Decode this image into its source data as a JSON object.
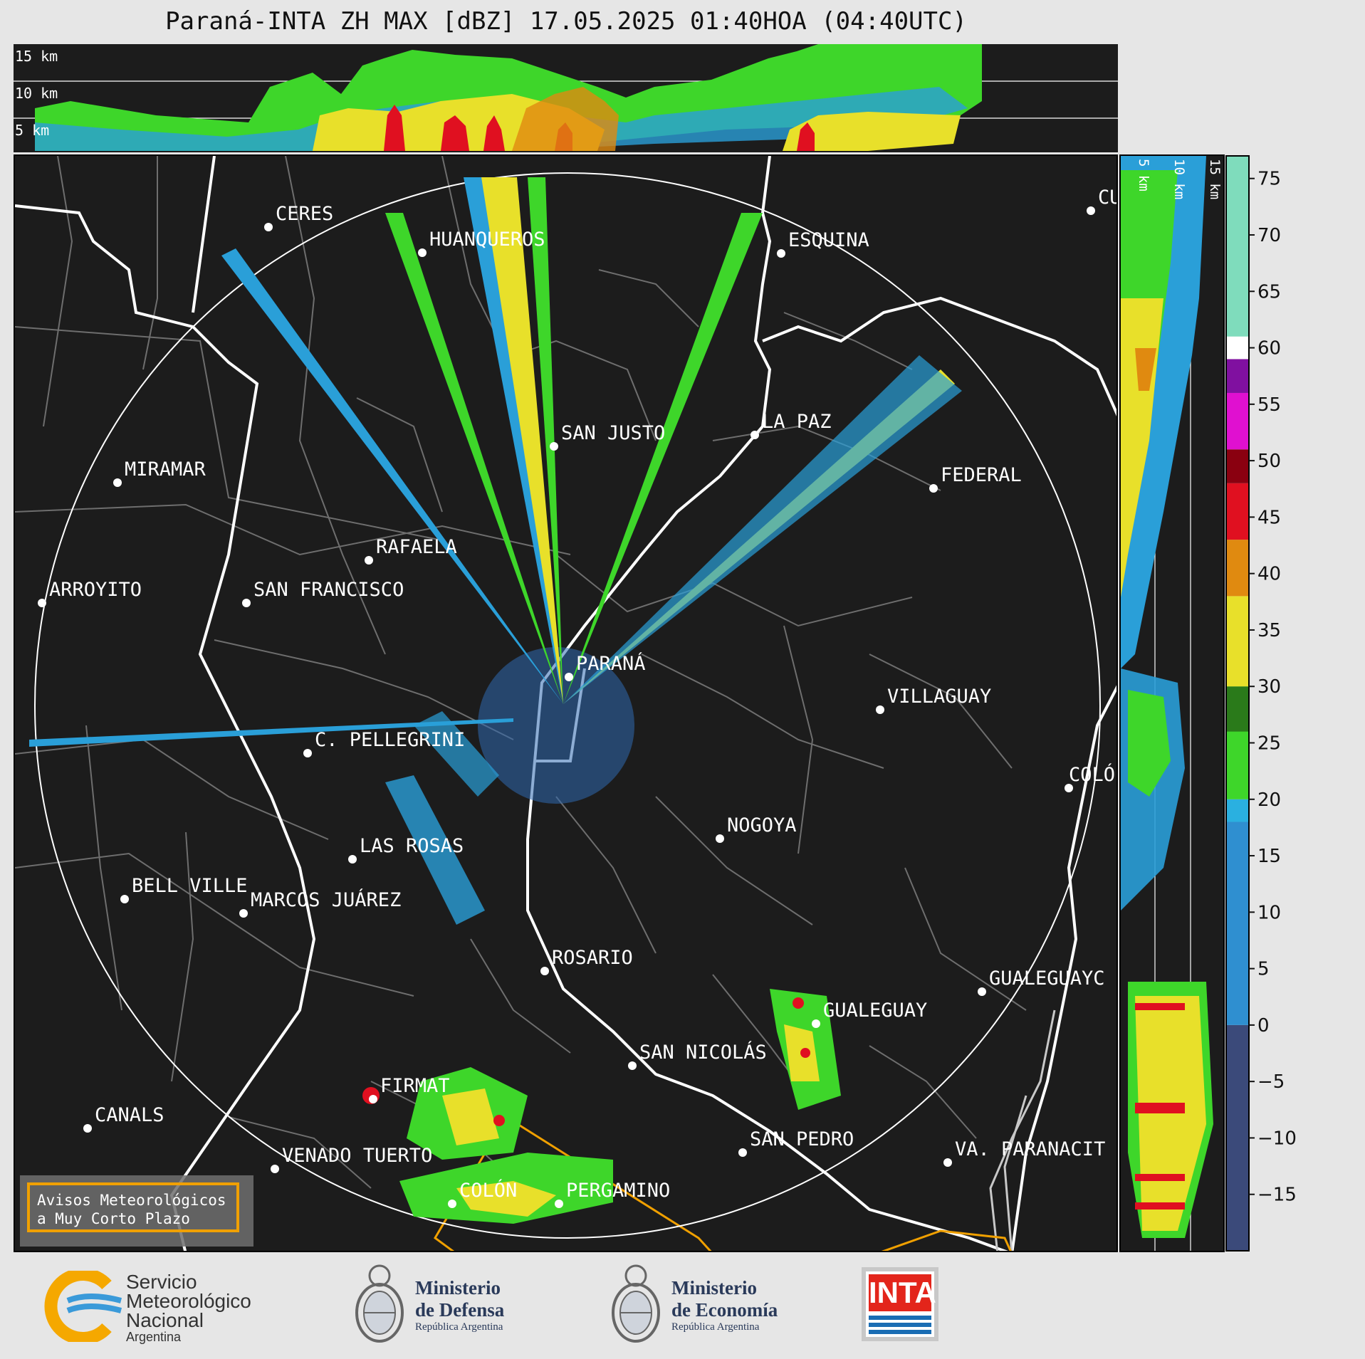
{
  "title": "Paraná-INTA ZH MAX [dBZ] 17.05.2025 01:40HOA (04:40UTC)",
  "top_panel": {
    "height_labels": [
      "15 km",
      "10 km",
      "5 km"
    ]
  },
  "side_panel": {
    "height_labels": [
      "5 km",
      "10 km",
      "15 km"
    ]
  },
  "colorbar": {
    "ticks": [
      "75",
      "70",
      "65",
      "60",
      "55",
      "50",
      "45",
      "40",
      "35",
      "30",
      "25",
      "20",
      "15",
      "10",
      "5",
      "0",
      "−5",
      "−10",
      "−15"
    ],
    "range_dbz": [
      -20,
      77
    ],
    "colors": {
      "low": "#3b4a7a",
      "blue": "#2f8fd0",
      "cyan": "#2ab0e0",
      "green": "#3ed62a",
      "darkgreen": "#2a7a1a",
      "yellow": "#e8e02a",
      "orange": "#e08a10",
      "red": "#e01020",
      "darkred": "#8a0010",
      "magenta": "#e010d0",
      "purple": "#8010a0",
      "white": "#ffffff",
      "mint": "#7fdcbc"
    }
  },
  "cities": [
    "CERES",
    "HUANQUEROS",
    "ESQUINA",
    "CU",
    "SAN JUSTO",
    "LA PAZ",
    "MIRAMAR",
    "FEDERAL",
    "RAFAELA",
    "ARROYITO",
    "SAN FRANCISCO",
    "PARANÁ",
    "VILLAGUAY",
    "C. PELLEGRINI",
    "COLÓ",
    "NOGOYA",
    "LAS ROSAS",
    "BELL VILLE",
    "MARCOS JUÁREZ",
    "ROSARIO",
    "GUALEGUAYC",
    "GUALEGUAY",
    "SAN NICOLÁS",
    "FIRMAT",
    "CANALS",
    "SAN PEDRO",
    "VENADO TUERTO",
    "VA. PARANACIT",
    "COLÓN",
    "PERGAMINO"
  ],
  "legend": {
    "line1": "Avisos Meteorológicos",
    "line2": "a Muy Corto Plazo"
  },
  "footer": {
    "smn": {
      "line1": "Servicio",
      "line2": "Meteorológico",
      "line3": "Nacional",
      "line4": "Argentina"
    },
    "defensa": {
      "line1": "Ministerio",
      "line2": "de Defensa",
      "line3": "República Argentina"
    },
    "economia": {
      "line1": "Ministerio",
      "line2": "de Economía",
      "line3": "República Argentina"
    },
    "inta": "INTA"
  }
}
